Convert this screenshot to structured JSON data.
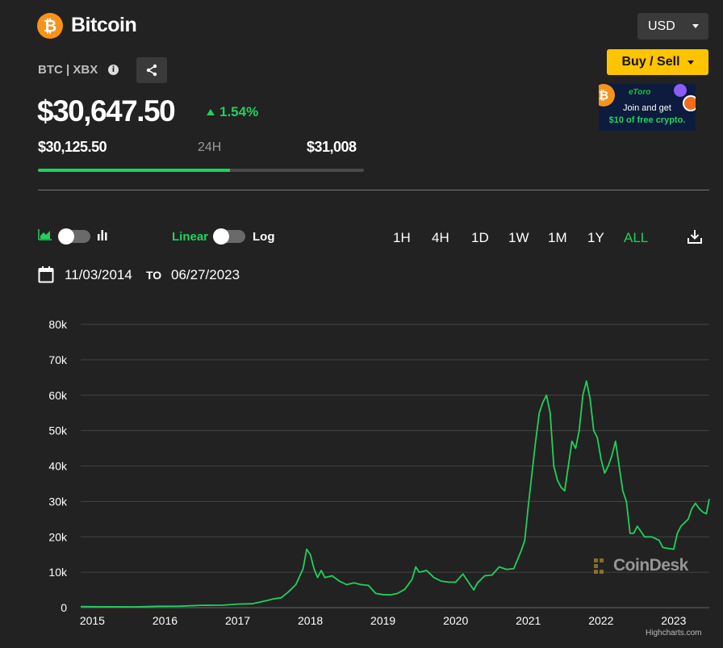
{
  "header": {
    "coin_symbol_glyph": "₿",
    "coin_name": "Bitcoin",
    "currency": "USD",
    "ticker": "BTC | XBX",
    "buy_sell_label": "Buy / Sell"
  },
  "ad": {
    "brand": "eToro",
    "line1": "Join and get",
    "line2": "$10 of free crypto."
  },
  "price": {
    "current": "$30,647.50",
    "change": "1.54%",
    "low": "$30,125.50",
    "range_label": "24H",
    "high": "$31,008",
    "range_position_pct": 59
  },
  "controls": {
    "scale_linear": "Linear",
    "scale_log": "Log",
    "timeframes": [
      "1H",
      "4H",
      "1D",
      "1W",
      "1M",
      "1Y",
      "ALL"
    ],
    "active_timeframe": "ALL",
    "date_from": "11/03/2014",
    "date_to_label": "TO",
    "date_to": "06/27/2023"
  },
  "watermark": "CoinDesk",
  "credits": "Highcharts.com",
  "colors": {
    "accent_green": "#1fd15c",
    "bitcoin_orange": "#f7931a",
    "buy_yellow": "#ffc400",
    "background": "#222222"
  },
  "chart_data": {
    "type": "line",
    "series": [
      {
        "x": [
          2014.84,
          2015.0,
          2015.3,
          2015.6,
          2015.9,
          2016.2,
          2016.5,
          2016.8,
          2017.0,
          2017.2,
          2017.4,
          2017.5,
          2017.6,
          2017.7,
          2017.8,
          2017.9,
          2017.95,
          2018.0,
          2018.05,
          2018.1,
          2018.15,
          2018.2,
          2018.3,
          2018.4,
          2018.5,
          2018.6,
          2018.7,
          2018.8,
          2018.9,
          2019.0,
          2019.1,
          2019.2,
          2019.3,
          2019.4,
          2019.45,
          2019.5,
          2019.6,
          2019.7,
          2019.8,
          2019.9,
          2020.0,
          2020.1,
          2020.2,
          2020.25,
          2020.3,
          2020.4,
          2020.5,
          2020.6,
          2020.7,
          2020.8,
          2020.85,
          2020.9,
          2020.95,
          2021.0,
          2021.05,
          2021.1,
          2021.15,
          2021.2,
          2021.25,
          2021.3,
          2021.35,
          2021.4,
          2021.45,
          2021.5,
          2021.55,
          2021.6,
          2021.65,
          2021.7,
          2021.75,
          2021.8,
          2021.85,
          2021.9,
          2021.95,
          2022.0,
          2022.05,
          2022.1,
          2022.15,
          2022.2,
          2022.25,
          2022.3,
          2022.35,
          2022.4,
          2022.45,
          2022.5,
          2022.6,
          2022.7,
          2022.8,
          2022.85,
          2022.9,
          2023.0,
          2023.05,
          2023.1,
          2023.15,
          2023.2,
          2023.25,
          2023.3,
          2023.35,
          2023.4,
          2023.45,
          2023.49
        ],
        "y": [
          330,
          280,
          240,
          230,
          380,
          420,
          650,
          700,
          1000,
          1100,
          2000,
          2500,
          2800,
          4500,
          6500,
          11000,
          16500,
          15000,
          11000,
          8500,
          10500,
          8500,
          9000,
          7500,
          6500,
          7000,
          6500,
          6300,
          4000,
          3700,
          3600,
          4000,
          5200,
          8000,
          11500,
          10000,
          10500,
          8500,
          7500,
          7200,
          7200,
          9500,
          6500,
          5000,
          7000,
          9000,
          9200,
          11500,
          10800,
          11000,
          13500,
          16000,
          19000,
          29000,
          38000,
          47000,
          55000,
          58000,
          60000,
          55000,
          40000,
          36000,
          34000,
          33000,
          40000,
          47000,
          45000,
          50000,
          60000,
          64000,
          59000,
          50000,
          48000,
          42000,
          38000,
          40000,
          43000,
          47000,
          40000,
          33000,
          30000,
          21000,
          21000,
          23000,
          20000,
          20000,
          19000,
          17000,
          16800,
          16500,
          21000,
          23000,
          24000,
          25000,
          28000,
          29500,
          28000,
          27000,
          26500,
          30700
        ]
      }
    ],
    "x_ticks": [
      "2015",
      "2016",
      "2017",
      "2018",
      "2019",
      "2020",
      "2021",
      "2022",
      "2023"
    ],
    "y_ticks": [
      "0",
      "10k",
      "20k",
      "30k",
      "40k",
      "50k",
      "60k",
      "70k",
      "80k"
    ],
    "ylim": [
      0,
      80000
    ],
    "xlim": [
      2014.84,
      2023.49
    ],
    "grid": true,
    "legend": "none"
  }
}
